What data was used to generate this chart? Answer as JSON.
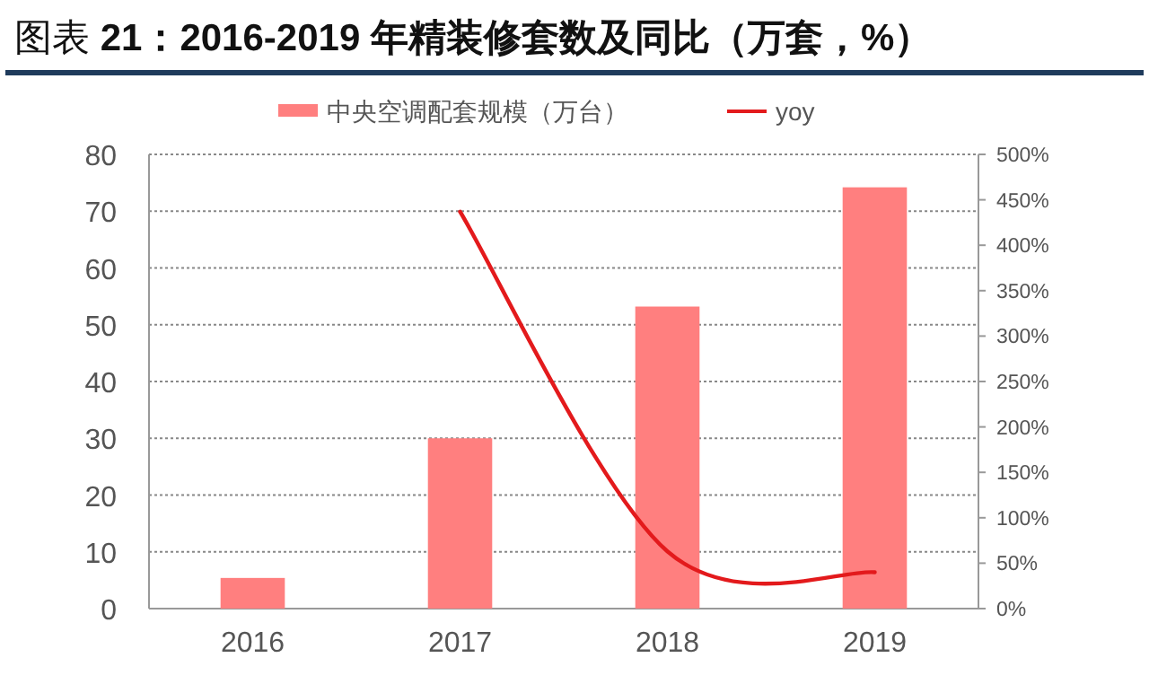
{
  "chart_data": {
    "type": "bar",
    "title": "图表 **21：2016-2019 年精装修套数及同比（万套，%）**",
    "categories": [
      "2016",
      "2017",
      "2018",
      "2019"
    ],
    "series": [
      {
        "name": "中央空调配套规模（万台）",
        "color": "#ff7f7f",
        "values": [
          5.4,
          30,
          53.2,
          74.2
        ]
      },
      {
        "name": "yoy",
        "type": "line",
        "axis": "y2",
        "color": "#e31a1c",
        "values": [
          null,
          437,
          63,
          40
        ]
      }
    ],
    "ylim": [
      0,
      80
    ],
    "yticks": [
      0,
      10,
      20,
      30,
      40,
      50,
      60,
      70,
      80
    ],
    "y2lim": [
      0,
      500
    ],
    "y2ticks": [
      {
        "value": 0,
        "label": "0%"
      },
      {
        "value": 50,
        "label": "50%"
      },
      {
        "value": 100,
        "label": "100%"
      },
      {
        "value": 150,
        "label": "150%"
      },
      {
        "value": 200,
        "label": "200%"
      },
      {
        "value": 250,
        "label": "250%"
      },
      {
        "value": 300,
        "label": "300%"
      },
      {
        "value": 350,
        "label": "350%"
      },
      {
        "value": 400,
        "label": "400%"
      },
      {
        "value": 450,
        "label": "450%"
      },
      {
        "value": 500,
        "label": "500%"
      }
    ],
    "grid": "y",
    "legend": "top"
  }
}
